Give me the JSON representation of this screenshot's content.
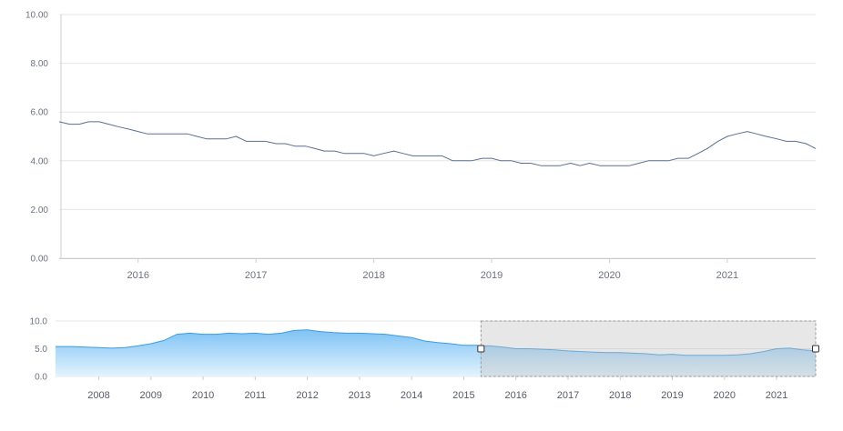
{
  "chart_data": [
    {
      "type": "line",
      "role": "main",
      "ylim": [
        0,
        10
      ],
      "yticks": [
        0,
        2,
        4,
        6,
        8,
        10
      ],
      "ytick_labels": [
        "0.00",
        "2.00",
        "4.00",
        "6.00",
        "8.00",
        "10.00"
      ],
      "xlim": [
        2015.33,
        2021.75
      ],
      "xticks": [
        2016,
        2017,
        2018,
        2019,
        2020,
        2021
      ],
      "xtick_labels": [
        "2016",
        "2017",
        "2018",
        "2019",
        "2020",
        "2021"
      ],
      "grid": true,
      "colors": {
        "line": "#5b6f91",
        "grid": "#e6e6e6",
        "axis": "#cccccc"
      },
      "series": [
        {
          "x": [
            2015.33,
            2015.42,
            2015.5,
            2015.58,
            2015.67,
            2015.75,
            2015.83,
            2015.92,
            2016.0,
            2016.08,
            2016.17,
            2016.25,
            2016.33,
            2016.42,
            2016.5,
            2016.58,
            2016.67,
            2016.75,
            2016.83,
            2016.92,
            2017.0,
            2017.08,
            2017.17,
            2017.25,
            2017.33,
            2017.42,
            2017.5,
            2017.58,
            2017.67,
            2017.75,
            2017.83,
            2017.92,
            2018.0,
            2018.08,
            2018.17,
            2018.25,
            2018.33,
            2018.42,
            2018.5,
            2018.58,
            2018.67,
            2018.75,
            2018.83,
            2018.92,
            2019.0,
            2019.08,
            2019.17,
            2019.25,
            2019.33,
            2019.42,
            2019.5,
            2019.58,
            2019.67,
            2019.75,
            2019.83,
            2019.92,
            2020.0,
            2020.08,
            2020.17,
            2020.25,
            2020.33,
            2020.42,
            2020.5,
            2020.58,
            2020.67,
            2020.75,
            2020.83,
            2020.92,
            2021.0,
            2021.08,
            2021.17,
            2021.25,
            2021.33,
            2021.42,
            2021.5,
            2021.58,
            2021.67,
            2021.75
          ],
          "y": [
            5.6,
            5.5,
            5.5,
            5.6,
            5.6,
            5.5,
            5.4,
            5.3,
            5.2,
            5.1,
            5.1,
            5.1,
            5.1,
            5.1,
            5.0,
            4.9,
            4.9,
            4.9,
            5.0,
            4.8,
            4.8,
            4.8,
            4.7,
            4.7,
            4.6,
            4.6,
            4.5,
            4.4,
            4.4,
            4.3,
            4.3,
            4.3,
            4.2,
            4.3,
            4.4,
            4.3,
            4.2,
            4.2,
            4.2,
            4.2,
            4.0,
            4.0,
            4.0,
            4.1,
            4.1,
            4.0,
            4.0,
            3.9,
            3.9,
            3.8,
            3.8,
            3.8,
            3.9,
            3.8,
            3.9,
            3.8,
            3.8,
            3.8,
            3.8,
            3.9,
            4.0,
            4.0,
            4.0,
            4.1,
            4.1,
            4.3,
            4.5,
            4.8,
            5.0,
            5.1,
            5.2,
            5.1,
            5.0,
            4.9,
            4.8,
            4.8,
            4.7,
            4.5
          ]
        }
      ]
    },
    {
      "type": "area",
      "role": "navigator",
      "ylim": [
        0,
        10
      ],
      "yticks": [
        0,
        5,
        10
      ],
      "ytick_labels": [
        "0.0",
        "5.0",
        "10.0"
      ],
      "xlim": [
        2007.17,
        2021.75
      ],
      "xticks": [
        2008,
        2009,
        2010,
        2011,
        2012,
        2013,
        2014,
        2015,
        2016,
        2017,
        2018,
        2019,
        2020,
        2021
      ],
      "xtick_labels": [
        "2008",
        "2009",
        "2010",
        "2011",
        "2012",
        "2013",
        "2014",
        "2015",
        "2016",
        "2017",
        "2018",
        "2019",
        "2020",
        "2021"
      ],
      "selected_range": [
        2015.33,
        2021.75
      ],
      "colors": {
        "fill_top": "#7ec3f5",
        "fill_bottom": "#e3f3fd",
        "line": "#3d9be0",
        "mask": "#bfbfbf",
        "grid": "#e6e6e6"
      },
      "series": [
        {
          "x": [
            2007.17,
            2007.5,
            2007.75,
            2008.0,
            2008.25,
            2008.5,
            2008.75,
            2009.0,
            2009.25,
            2009.5,
            2009.75,
            2010.0,
            2010.25,
            2010.5,
            2010.75,
            2011.0,
            2011.25,
            2011.5,
            2011.75,
            2012.0,
            2012.25,
            2012.5,
            2012.75,
            2013.0,
            2013.25,
            2013.5,
            2013.75,
            2014.0,
            2014.25,
            2014.5,
            2014.75,
            2015.0,
            2015.25,
            2015.33,
            2015.5,
            2015.75,
            2016.0,
            2016.25,
            2016.5,
            2016.75,
            2017.0,
            2017.25,
            2017.5,
            2017.75,
            2018.0,
            2018.25,
            2018.5,
            2018.75,
            2019.0,
            2019.25,
            2019.5,
            2019.75,
            2020.0,
            2020.25,
            2020.5,
            2020.75,
            2021.0,
            2021.25,
            2021.5,
            2021.75
          ],
          "y": [
            5.4,
            5.4,
            5.3,
            5.2,
            5.1,
            5.2,
            5.5,
            5.9,
            6.5,
            7.6,
            7.8,
            7.6,
            7.6,
            7.8,
            7.7,
            7.8,
            7.6,
            7.8,
            8.3,
            8.4,
            8.1,
            7.9,
            7.8,
            7.8,
            7.7,
            7.6,
            7.3,
            7.0,
            6.4,
            6.1,
            5.9,
            5.6,
            5.6,
            5.5,
            5.5,
            5.3,
            5.0,
            5.0,
            4.9,
            4.8,
            4.6,
            4.5,
            4.4,
            4.3,
            4.3,
            4.2,
            4.1,
            3.9,
            4.0,
            3.8,
            3.8,
            3.8,
            3.8,
            3.9,
            4.1,
            4.5,
            5.0,
            5.1,
            4.8,
            4.6
          ]
        }
      ]
    }
  ]
}
